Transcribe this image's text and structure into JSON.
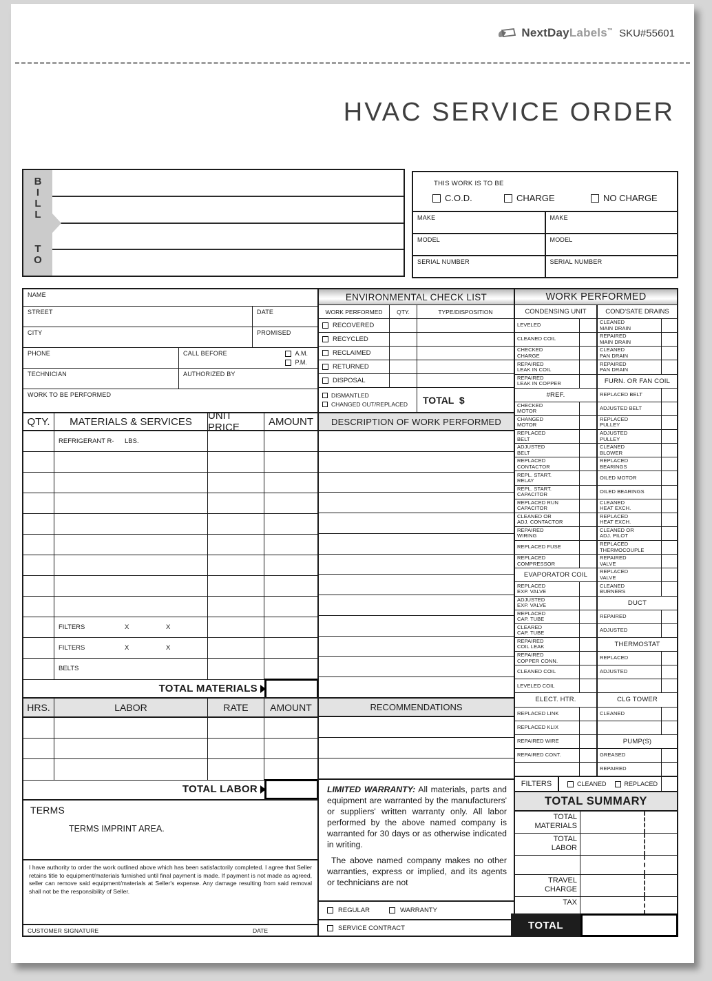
{
  "brand": {
    "icon": "label-icon",
    "name_primary": "NextDay",
    "name_secondary": "Labels",
    "trademark": "™",
    "sku": "SKU#55601"
  },
  "title": "HVAC SERVICE ORDER",
  "bill_to": {
    "letters_top": [
      "B",
      "I",
      "L",
      "L"
    ],
    "letters_bottom": [
      "T",
      "O"
    ],
    "line_count": 4
  },
  "work_type": {
    "heading": "THIS WORK IS TO BE",
    "options": [
      {
        "label": "C.O.D."
      },
      {
        "label": "CHARGE"
      },
      {
        "label": "NO CHARGE"
      }
    ],
    "columns": [
      [
        "MAKE",
        "MODEL",
        "SERIAL NUMBER"
      ],
      [
        "MAKE",
        "MODEL",
        "SERIAL NUMBER"
      ]
    ]
  },
  "customer": {
    "name_label": "NAME",
    "street_label": "STREET",
    "date_label": "DATE",
    "city_label": "CITY",
    "promised_label": "PROMISED",
    "phone_label": "PHONE",
    "call_before_label": "CALL BEFORE",
    "am_label": "A.M.",
    "pm_label": "P.M.",
    "technician_label": "TECHNICIAN",
    "authorized_by_label": "AUTHORIZED BY",
    "work_to_be_performed_label": "WORK TO BE PERFORMED"
  },
  "environmental_checklist": {
    "title": "ENVIRONMENTAL CHECK LIST",
    "columns": [
      "WORK PERFORMED",
      "QTY.",
      "TYPE/DISPOSITION"
    ],
    "rows": [
      "RECOVERED",
      "RECYCLED",
      "RECLAIMED",
      "RETURNED",
      "DISPOSAL"
    ],
    "footer_checks": [
      "DISMANTLED",
      "CHANGED OUT/REPLACED"
    ],
    "total_label": "TOTAL  $"
  },
  "materials": {
    "columns": [
      "QTY.",
      "MATERIALS & SERVICES",
      "UNIT PRICE",
      "AMOUNT"
    ],
    "rows": [
      {
        "tokens": [
          "REFRIGERANT R-",
          "LBS."
        ]
      },
      {},
      {},
      {},
      {},
      {},
      {},
      {},
      {},
      {
        "tokens": [
          "FILTERS",
          "X",
          "X"
        ]
      },
      {
        "tokens": [
          "FILTERS",
          "X",
          "X"
        ]
      },
      {
        "tokens": [
          "BELTS"
        ]
      }
    ],
    "total_label": "TOTAL MATERIALS"
  },
  "description": {
    "title": "DESCRIPTION OF WORK PERFORMED",
    "row_count": 13
  },
  "labor": {
    "columns": [
      "HRS.",
      "LABOR",
      "RATE",
      "AMOUNT"
    ],
    "row_count": 3,
    "total_label": "TOTAL LABOR"
  },
  "recommendations": {
    "title": "RECOMMENDATIONS",
    "row_count": 3
  },
  "work_performed": {
    "title": "WORK PERFORMED",
    "left_heading": "CONDENSING UNIT",
    "right_heading": "COND'SATE DRAINS",
    "rows": [
      {
        "left": {
          "t": "i",
          "v": "LEVELED"
        },
        "right": {
          "t": "i",
          "v": "CLEANED\nMAIN DRAIN"
        }
      },
      {
        "left": {
          "t": "i",
          "v": "CLEANED COIL"
        },
        "right": {
          "t": "i",
          "v": "REPAIRED\nMAIN DRAIN"
        }
      },
      {
        "left": {
          "t": "i",
          "v": "CHECKED\nCHARGE"
        },
        "right": {
          "t": "i",
          "v": "CLEANED\nPAN DRAIN"
        }
      },
      {
        "left": {
          "t": "i",
          "v": "REPAIRED\nLEAK IN COIL"
        },
        "right": {
          "t": "i",
          "v": "REPAIRED\nPAN DRAIN"
        }
      },
      {
        "left": {
          "t": "i",
          "v": "REPAIRED\nLEAK IN COPPER"
        },
        "right": {
          "t": "h",
          "v": "FURN. OR FAN COIL"
        }
      },
      {
        "left": {
          "t": "h",
          "v": "#REF."
        },
        "right": {
          "t": "i",
          "v": "REPLACED BELT"
        }
      },
      {
        "left": {
          "t": "i",
          "v": "CHECKED\nMOTOR"
        },
        "right": {
          "t": "i",
          "v": "ADJUSTED BELT"
        }
      },
      {
        "left": {
          "t": "i",
          "v": "CHANGED\nMOTOR"
        },
        "right": {
          "t": "i",
          "v": "REPLACED\nPULLEY"
        }
      },
      {
        "left": {
          "t": "i",
          "v": "REPLACED\nBELT"
        },
        "right": {
          "t": "i",
          "v": "ADJUSTED\nPULLEY"
        }
      },
      {
        "left": {
          "t": "i",
          "v": "ADJUSTED\nBELT"
        },
        "right": {
          "t": "i",
          "v": "CLEANED\nBLOWER"
        }
      },
      {
        "left": {
          "t": "i",
          "v": "REPLACED\nCONTACTOR"
        },
        "right": {
          "t": "i",
          "v": "REPLACED\nBEARINGS"
        }
      },
      {
        "left": {
          "t": "i",
          "v": "REPL. START.\nRELAY"
        },
        "right": {
          "t": "i",
          "v": "OILED MOTOR"
        }
      },
      {
        "left": {
          "t": "i",
          "v": "REPL. START.\nCAPACITOR"
        },
        "right": {
          "t": "i",
          "v": "OILED BEARINGS"
        }
      },
      {
        "left": {
          "t": "i",
          "v": "REPLACED RUN\nCAPACITOR"
        },
        "right": {
          "t": "i",
          "v": "CLEANED\nHEAT EXCH."
        }
      },
      {
        "left": {
          "t": "i",
          "v": "CLEANED OR\nADJ. CONTACTOR"
        },
        "right": {
          "t": "i",
          "v": "REPLACED\nHEAT EXCH."
        }
      },
      {
        "left": {
          "t": "i",
          "v": "REPAIRED\nWIRING"
        },
        "right": {
          "t": "i",
          "v": "CLEANED OR\nADJ. PILOT"
        }
      },
      {
        "left": {
          "t": "i",
          "v": "REPLACED FUSE"
        },
        "right": {
          "t": "i",
          "v": "REPLACED\nTHERMOCOUPLE"
        }
      },
      {
        "left": {
          "t": "i",
          "v": "REPLACED\nCOMPRESSOR"
        },
        "right": {
          "t": "i",
          "v": "REPAIRED\nVALVE"
        }
      },
      {
        "left": {
          "t": "h",
          "v": "EVAPORATOR COIL"
        },
        "right": {
          "t": "i",
          "v": "REPLACED\nVALVE"
        }
      },
      {
        "left": {
          "t": "i",
          "v": "REPLACED\nEXP. VALVE"
        },
        "right": {
          "t": "i",
          "v": "CLEANED\nBURNERS"
        }
      },
      {
        "left": {
          "t": "i",
          "v": "ADJUSTED\nEXP. VALVE"
        },
        "right": {
          "t": "h",
          "v": "DUCT"
        }
      },
      {
        "left": {
          "t": "i",
          "v": "REPLACED\nCAP. TUBE"
        },
        "right": {
          "t": "i",
          "v": "REPAIRED"
        }
      },
      {
        "left": {
          "t": "i",
          "v": "CLEARED\nCAP. TUBE"
        },
        "right": {
          "t": "i",
          "v": "ADJUSTED"
        }
      },
      {
        "left": {
          "t": "i",
          "v": "REPAIRED\nCOIL LEAK"
        },
        "right": {
          "t": "h",
          "v": "THERMOSTAT"
        }
      },
      {
        "left": {
          "t": "i",
          "v": "REPAIRED\nCOPPER CONN."
        },
        "right": {
          "t": "i",
          "v": "REPLACED"
        }
      },
      {
        "left": {
          "t": "i",
          "v": "CLEANED COIL"
        },
        "right": {
          "t": "i",
          "v": "ADJUSTED"
        }
      },
      {
        "left": {
          "t": "i",
          "v": "LEVELED COIL"
        },
        "right": {
          "t": "e",
          "v": ""
        }
      },
      {
        "left": {
          "t": "h",
          "v": "ELECT. HTR."
        },
        "right": {
          "t": "h",
          "v": "CLG TOWER"
        }
      },
      {
        "left": {
          "t": "i",
          "v": "REPLACED LINK"
        },
        "right": {
          "t": "i",
          "v": "CLEANED"
        }
      },
      {
        "left": {
          "t": "i",
          "v": "REPLACED KLIX"
        },
        "right": {
          "t": "e",
          "v": ""
        }
      },
      {
        "left": {
          "t": "i",
          "v": "REPAIRED WIRE"
        },
        "right": {
          "t": "h",
          "v": "PUMP(S)"
        }
      },
      {
        "left": {
          "t": "i",
          "v": "REPAIRED CONT."
        },
        "right": {
          "t": "i",
          "v": "GREASED"
        }
      },
      {
        "left": {
          "t": "e",
          "v": ""
        },
        "right": {
          "t": "i",
          "v": "REPAIRED"
        }
      }
    ],
    "filters": {
      "label": "FILTERS",
      "options": [
        "CLEANED",
        "REPLACED"
      ]
    }
  },
  "warranty": {
    "lead": "LIMITED WARRANTY:",
    "p1": " All materials, parts and equipment are warranted by the manufacturers' or suppliers' written warranty only. All labor performed by the above named company is warranted for 30 days or as otherwise indicated in writing.",
    "p2": "The above named company makes no other warranties, express or implied, and its agents or technicians are not",
    "service_options": [
      "REGULAR",
      "WARRANTY"
    ],
    "service_contract": "SERVICE CONTRACT"
  },
  "terms": {
    "title": "TERMS",
    "imprint": "TERMS IMPRINT AREA.",
    "agreement": "I have authority to order the work outlined above which has been satisfactorily completed. I agree that Seller retains title to equipment/materials furnished until final payment is made. If payment is not made as agreed, seller can remove said equipment/materials at Seller's expense. Any damage resulting from said removal shall not be the responsibility of Seller.",
    "signature_label": "CUSTOMER SIGNATURE",
    "date_label": "DATE"
  },
  "total_summary": {
    "title": "TOTAL SUMMARY",
    "rows": [
      "TOTAL\nMATERIALS",
      "TOTAL\nLABOR",
      "",
      "TRAVEL\nCHARGE",
      "TAX"
    ],
    "total_label": "TOTAL"
  },
  "colors": {
    "line": "#1a1a1a",
    "header_fill": "#e3e3e3",
    "total_fill": "#1d1d1d",
    "strip_fill": "#cbcbcb"
  }
}
